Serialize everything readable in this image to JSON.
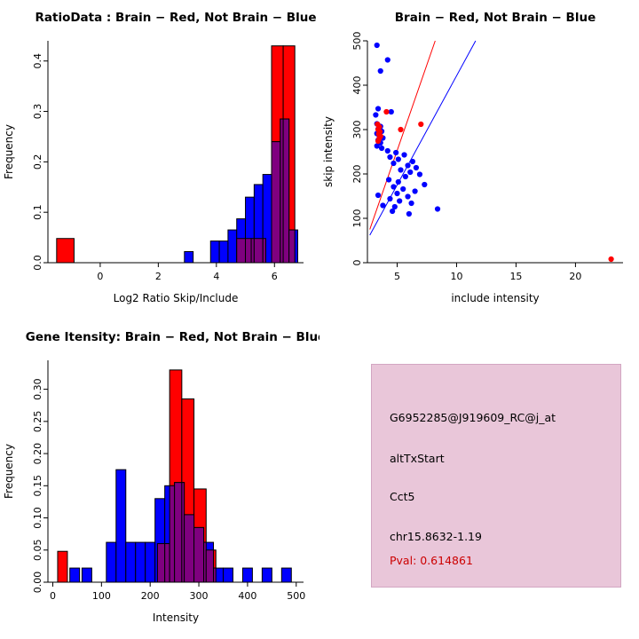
{
  "page": {
    "background": "#FFFFFF"
  },
  "panels": {
    "info": {
      "bg_color": "#E9C6D9",
      "lines": [
        {
          "text": "G6952285@J919609_RC@j_at",
          "color": "#000000"
        },
        {
          "text": "altTxStart",
          "color": "#000000"
        },
        {
          "text": "Cct5",
          "color": "#000000"
        },
        {
          "text": "chr15.8632-1.19",
          "color": "#000000"
        },
        {
          "text": "Pval: 0.614861",
          "color": "#CC0000"
        }
      ]
    }
  },
  "chart_data": [
    {
      "id": "ratio-hist",
      "type": "bar",
      "subtype": "overlaid-histogram",
      "title": "RatioData : Brain − Red, Not Brain − Blue",
      "xlabel": "Log2 Ratio Skip/Include",
      "ylabel": "Frequency",
      "xlim": [
        -1.8,
        7.0
      ],
      "ylim": [
        0,
        0.44
      ],
      "xticks": [
        0,
        2,
        4,
        6
      ],
      "yticks": [
        0,
        0.1,
        0.2,
        0.3,
        0.4
      ],
      "ytick_labels": [
        "0.0",
        "0.1",
        "0.2",
        "0.3",
        "0.4"
      ],
      "grid": false,
      "overlap_color": "#7F007F",
      "series": [
        {
          "name": "Brain",
          "color": "#FF0000",
          "bars": [
            [
              -1.5,
              -0.9,
              0.048
            ],
            [
              4.7,
              5.2,
              0.048
            ],
            [
              5.2,
              5.7,
              0.048
            ],
            [
              5.9,
              6.3,
              0.43
            ],
            [
              6.3,
              6.7,
              0.43
            ]
          ]
        },
        {
          "name": "Not Brain",
          "color": "#0000FF",
          "bars": [
            [
              2.9,
              3.2,
              0.022
            ],
            [
              3.8,
              4.1,
              0.043
            ],
            [
              4.1,
              4.4,
              0.043
            ],
            [
              4.4,
              4.7,
              0.065
            ],
            [
              4.7,
              5.0,
              0.087
            ],
            [
              5.0,
              5.3,
              0.13
            ],
            [
              5.3,
              5.6,
              0.155
            ],
            [
              5.6,
              5.9,
              0.175
            ],
            [
              5.9,
              6.2,
              0.24
            ],
            [
              6.2,
              6.5,
              0.285
            ],
            [
              6.5,
              6.8,
              0.065
            ]
          ]
        }
      ]
    },
    {
      "id": "intensity-scatter",
      "type": "scatter",
      "title": "Brain − Red, Not Brain − Blue",
      "xlabel": "include intensity",
      "ylabel": "skip intensity",
      "xlim": [
        2.5,
        24
      ],
      "ylim": [
        0,
        500
      ],
      "xticks": [
        5,
        10,
        15,
        20
      ],
      "yticks": [
        0,
        100,
        200,
        300,
        400,
        500
      ],
      "ytick_labels": [
        "0",
        "100",
        "200",
        "300",
        "400",
        "500"
      ],
      "grid": false,
      "series": [
        {
          "name": "Not Brain",
          "color": "#0000FF",
          "points": [
            [
              3.3,
              490
            ],
            [
              4.2,
              457
            ],
            [
              3.6,
              432
            ],
            [
              3.4,
              347
            ],
            [
              4.5,
              340
            ],
            [
              3.2,
              333
            ],
            [
              3.3,
              313
            ],
            [
              3.6,
              307
            ],
            [
              3.4,
              301
            ],
            [
              3.7,
              296
            ],
            [
              3.3,
              291
            ],
            [
              3.5,
              286
            ],
            [
              3.8,
              281
            ],
            [
              3.4,
              276
            ],
            [
              3.6,
              270
            ],
            [
              3.3,
              263
            ],
            [
              3.7,
              258
            ],
            [
              4.2,
              252
            ],
            [
              4.9,
              248
            ],
            [
              5.6,
              243
            ],
            [
              4.4,
              238
            ],
            [
              5.1,
              233
            ],
            [
              6.3,
              228
            ],
            [
              4.7,
              224
            ],
            [
              5.9,
              219
            ],
            [
              6.6,
              214
            ],
            [
              5.3,
              209
            ],
            [
              6.1,
              204
            ],
            [
              6.9,
              199
            ],
            [
              5.7,
              194
            ],
            [
              4.3,
              187
            ],
            [
              5.1,
              182
            ],
            [
              7.3,
              176
            ],
            [
              4.7,
              171
            ],
            [
              5.5,
              166
            ],
            [
              6.5,
              161
            ],
            [
              5.0,
              156
            ],
            [
              3.4,
              152
            ],
            [
              5.9,
              149
            ],
            [
              4.4,
              144
            ],
            [
              5.2,
              139
            ],
            [
              6.2,
              134
            ],
            [
              3.8,
              129
            ],
            [
              4.8,
              126
            ],
            [
              8.4,
              121
            ],
            [
              4.6,
              116
            ],
            [
              6.0,
              110
            ]
          ]
        },
        {
          "name": "Brain",
          "color": "#FF0000",
          "points": [
            [
              3.35,
              312
            ],
            [
              3.5,
              306
            ],
            [
              3.4,
              300
            ],
            [
              3.55,
              295
            ],
            [
              3.45,
              290
            ],
            [
              3.6,
              285
            ],
            [
              3.5,
              280
            ],
            [
              3.4,
              274
            ],
            [
              4.1,
              340
            ],
            [
              5.3,
              300
            ],
            [
              7.0,
              312
            ],
            [
              23,
              8
            ]
          ]
        }
      ],
      "lines": [
        {
          "color": "#FF0000",
          "x1": 2.7,
          "y1": 75,
          "x2": 8.2,
          "y2": 500
        },
        {
          "color": "#0000FF",
          "x1": 2.7,
          "y1": 62,
          "x2": 11.6,
          "y2": 500
        }
      ]
    },
    {
      "id": "gene-hist",
      "type": "bar",
      "subtype": "overlaid-histogram",
      "title": "Gene Itensity: Brain − Red, Not Brain − Blue",
      "xlabel": "Intensity",
      "ylabel": "Frequency",
      "xlim": [
        -10,
        515
      ],
      "ylim": [
        0,
        0.345
      ],
      "xticks": [
        0,
        100,
        200,
        300,
        400,
        500
      ],
      "yticks": [
        0,
        0.05,
        0.1,
        0.15,
        0.2,
        0.25,
        0.3
      ],
      "ytick_labels": [
        "0.00",
        "0.05",
        "0.10",
        "0.15",
        "0.20",
        "0.25",
        "0.30"
      ],
      "grid": false,
      "overlap_color": "#7F007F",
      "series": [
        {
          "name": "Brain",
          "color": "#FF0000",
          "bars": [
            [
              10,
              30,
              0.048
            ],
            [
              215,
              240,
              0.06
            ],
            [
              240,
              265,
              0.33
            ],
            [
              265,
              290,
              0.285
            ],
            [
              290,
              315,
              0.145
            ],
            [
              315,
              335,
              0.05
            ]
          ]
        },
        {
          "name": "Not Brain",
          "color": "#0000FF",
          "bars": [
            [
              35,
              55,
              0.022
            ],
            [
              60,
              80,
              0.022
            ],
            [
              110,
              130,
              0.062
            ],
            [
              130,
              150,
              0.175
            ],
            [
              150,
              170,
              0.062
            ],
            [
              170,
              190,
              0.062
            ],
            [
              190,
              210,
              0.062
            ],
            [
              210,
              230,
              0.13
            ],
            [
              230,
              250,
              0.15
            ],
            [
              250,
              270,
              0.155
            ],
            [
              270,
              290,
              0.105
            ],
            [
              290,
              310,
              0.085
            ],
            [
              310,
              330,
              0.062
            ],
            [
              330,
              350,
              0.022
            ],
            [
              350,
              370,
              0.022
            ],
            [
              390,
              410,
              0.022
            ],
            [
              430,
              450,
              0.022
            ],
            [
              470,
              490,
              0.022
            ]
          ]
        }
      ]
    }
  ]
}
